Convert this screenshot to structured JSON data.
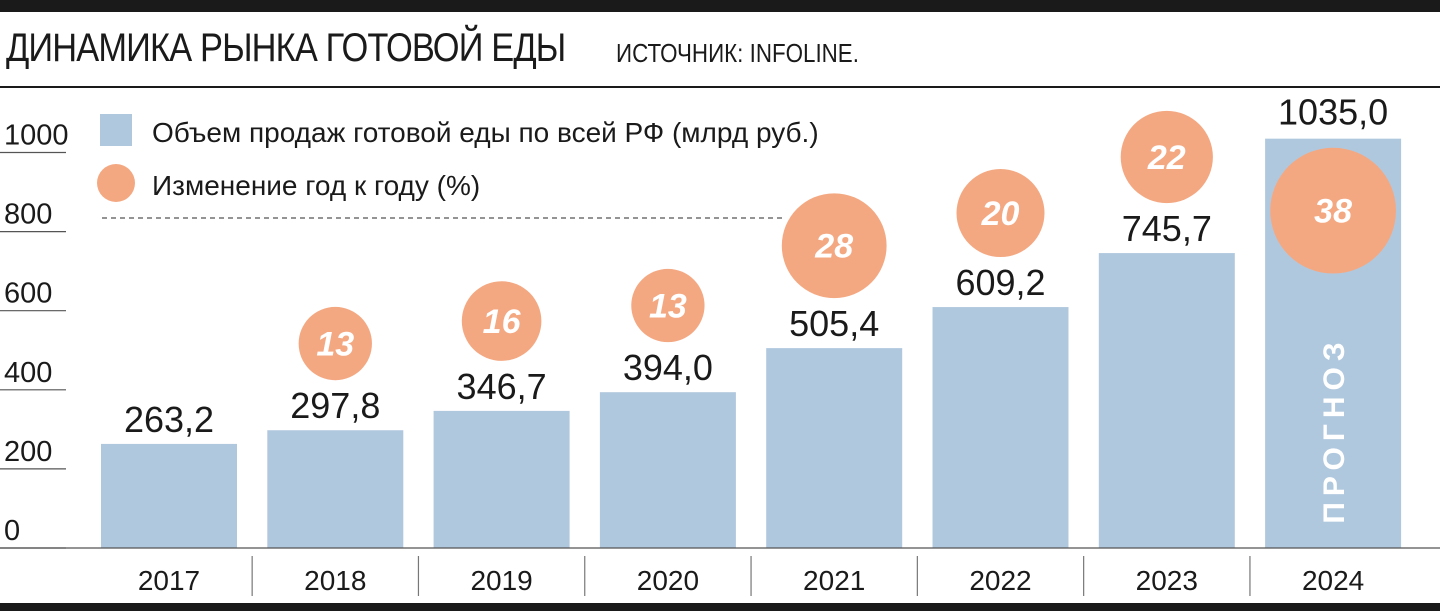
{
  "header": {
    "title": "ДИНАМИКА РЫНКА ГОТОВОЙ ЕДЫ",
    "source": "ИСТОЧНИК: INFOLINE."
  },
  "legend": {
    "bars_label": "Объем продаж готовой еды по всей РФ (млрд руб.)",
    "circles_label": "Изменение год к году (%)"
  },
  "colors": {
    "bar": "#b0c8de",
    "circle": "#f4a882",
    "text": "#1a1a1a"
  },
  "chart_data": {
    "type": "bar",
    "categories": [
      "2017",
      "2018",
      "2019",
      "2020",
      "2021",
      "2022",
      "2023",
      "2024"
    ],
    "series": [
      {
        "name": "Объем продаж готовой еды по всей РФ (млрд руб.)",
        "values": [
          263.2,
          297.8,
          346.7,
          394.0,
          505.4,
          609.2,
          745.7,
          1035.0
        ],
        "value_labels": [
          "263,2",
          "297,8",
          "346,7",
          "394,0",
          "505,4",
          "609,2",
          "745,7",
          "1035,0"
        ]
      },
      {
        "name": "Изменение год к году (%)",
        "values": [
          null,
          13,
          16,
          13,
          28,
          20,
          22,
          38
        ],
        "value_labels": [
          "",
          "13",
          "16",
          "13",
          "28",
          "20",
          "22",
          "38"
        ]
      }
    ],
    "yticks": [
      "0",
      "200",
      "400",
      "600",
      "800",
      "1000"
    ],
    "ylim": [
      0,
      1035
    ],
    "forecast_label": "ПРОГНОЗ",
    "forecast_category": "2024",
    "grid": false
  }
}
